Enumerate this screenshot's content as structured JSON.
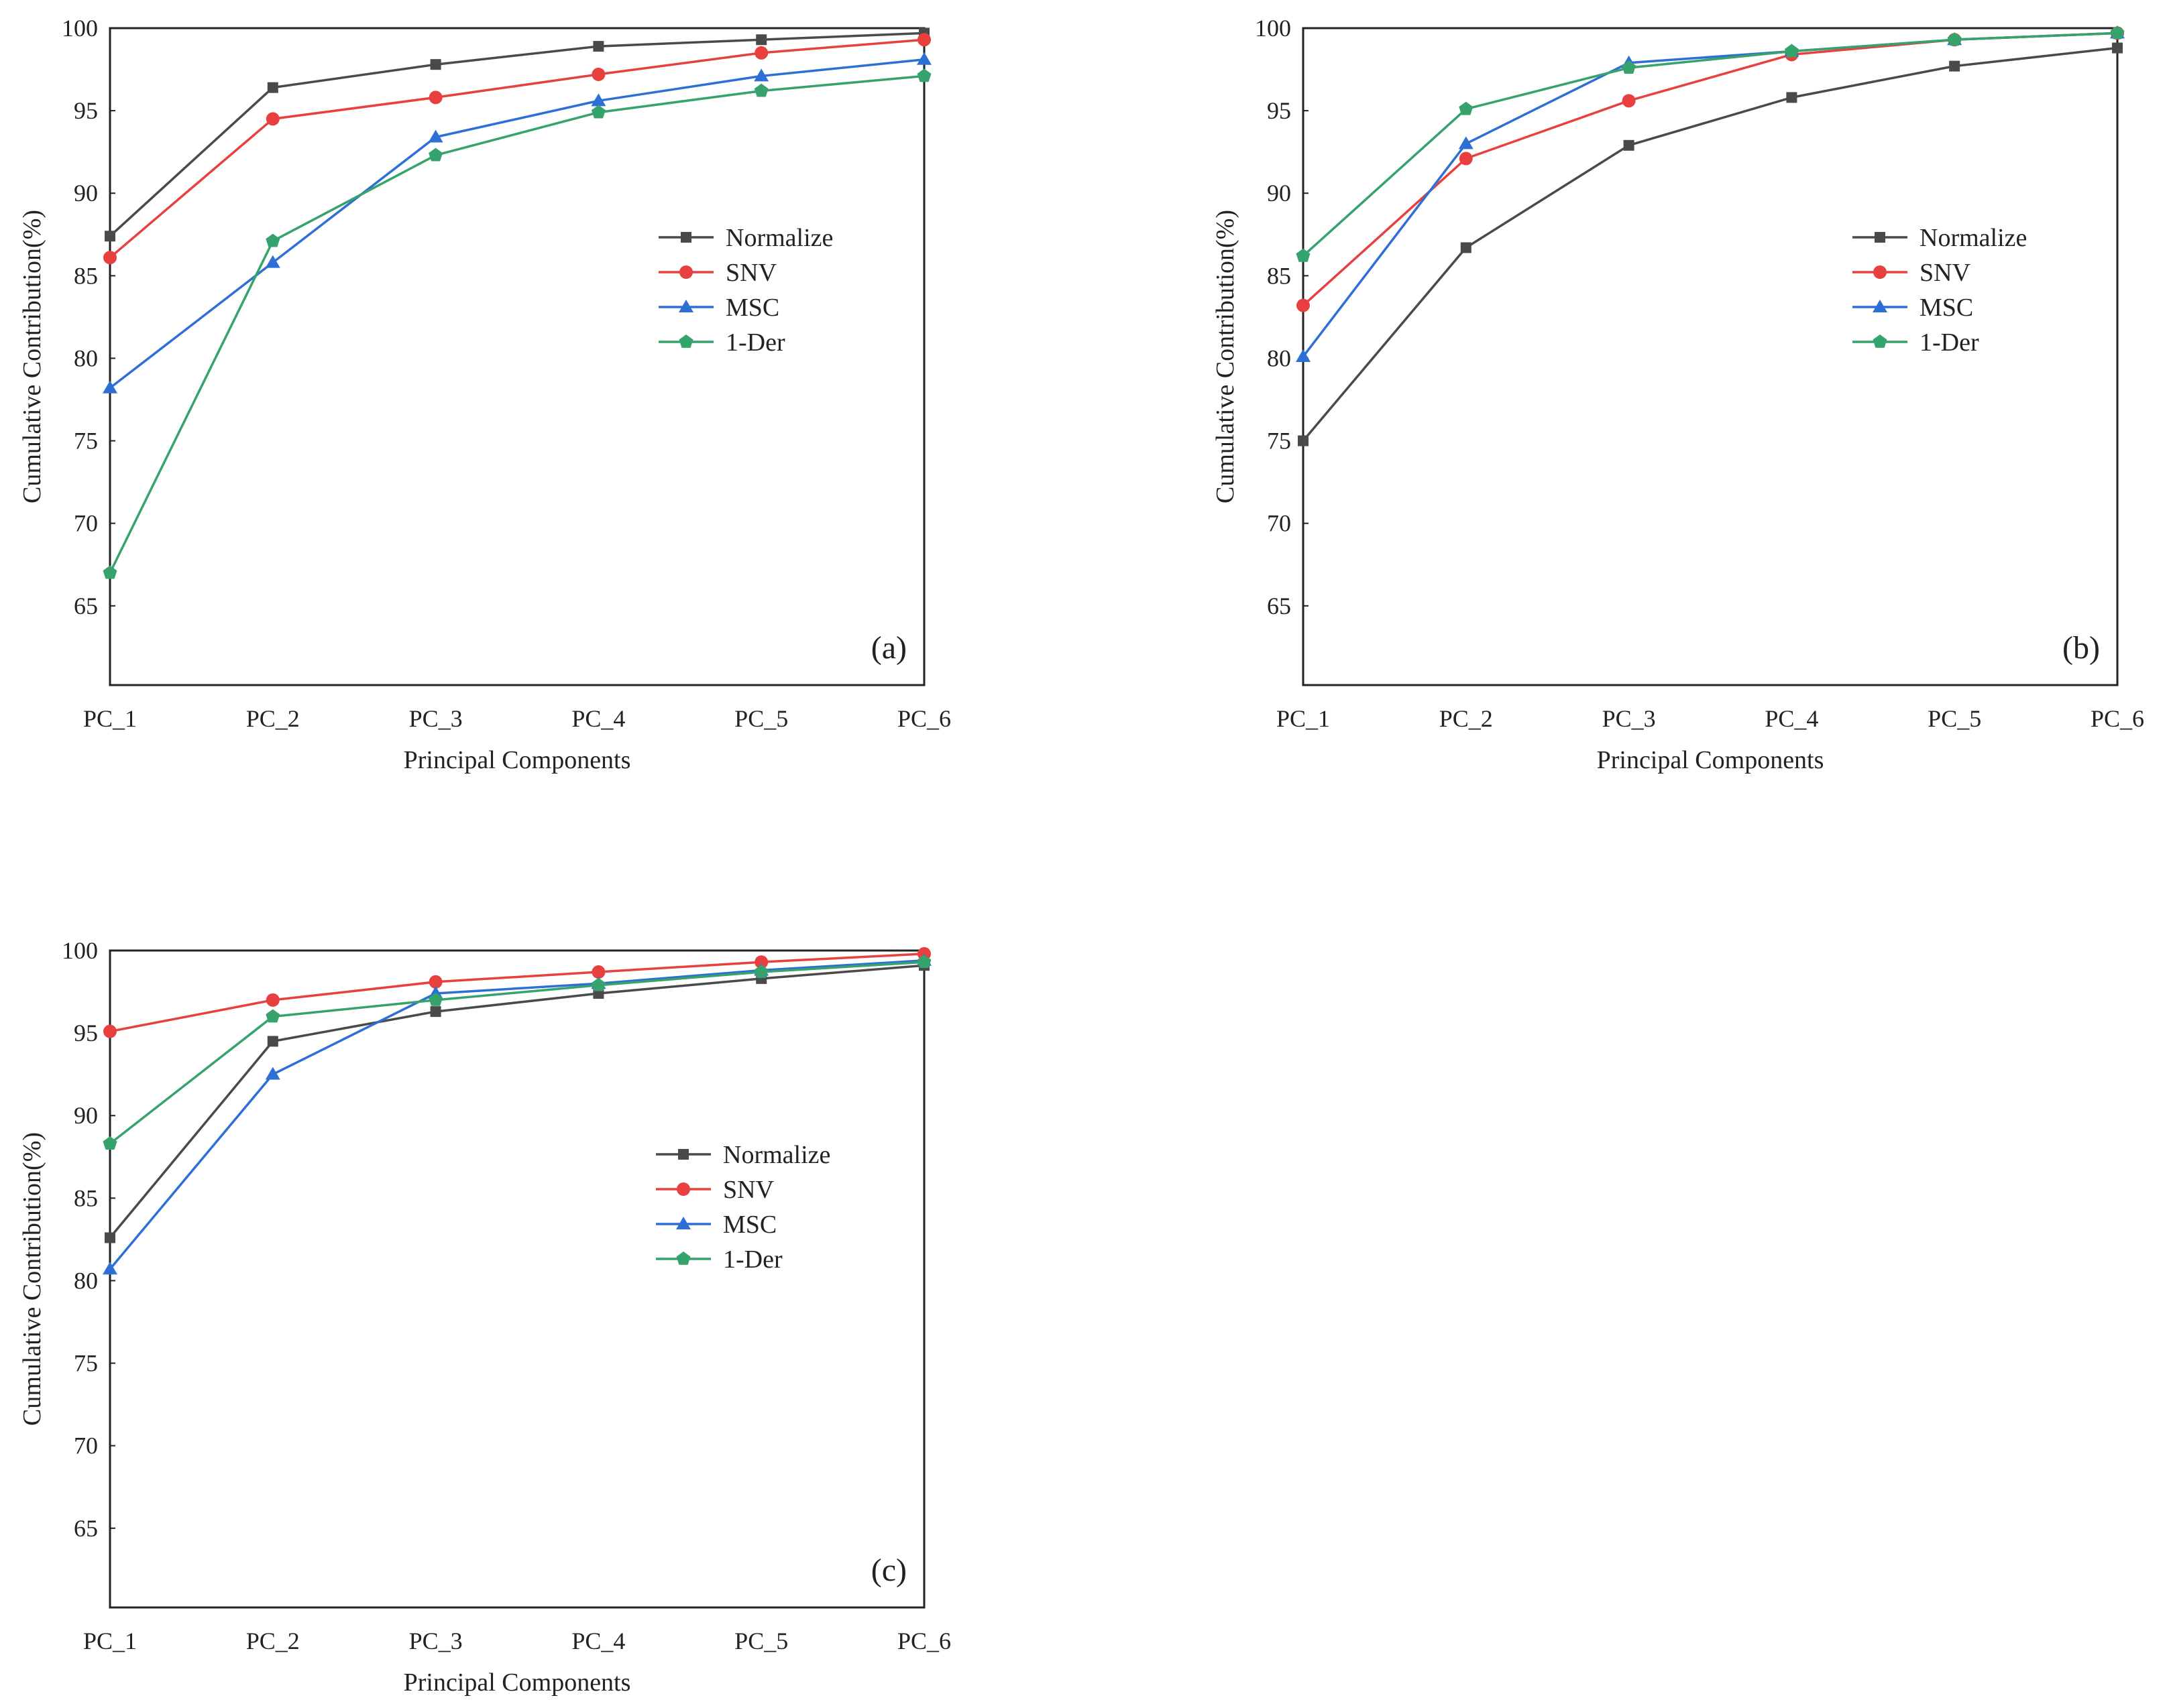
{
  "chart_data": [
    {
      "id": "a",
      "type": "line",
      "panel_label": "(a)",
      "xlabel": "Principal Components",
      "ylabel": "Cumulative Contribution(%)",
      "categories": [
        "PC_1",
        "PC_2",
        "PC_3",
        "PC_4",
        "PC_5",
        "PC_6"
      ],
      "ylim": [
        60.2,
        100
      ],
      "yticks": [
        65,
        70,
        75,
        80,
        85,
        90,
        95,
        100
      ],
      "legend_position": "center-right",
      "series": [
        {
          "name": "Normalize",
          "marker": "square",
          "color": "#4a4a4a",
          "values": [
            87.4,
            96.4,
            97.8,
            98.9,
            99.3,
            99.7
          ]
        },
        {
          "name": "SNV",
          "marker": "circle",
          "color": "#e8403f",
          "values": [
            86.1,
            94.5,
            95.8,
            97.2,
            98.5,
            99.3
          ]
        },
        {
          "name": "MSC",
          "marker": "triangle",
          "color": "#2e6fd6",
          "values": [
            78.2,
            85.8,
            93.4,
            95.6,
            97.1,
            98.1
          ]
        },
        {
          "name": "1-Der",
          "marker": "pentagon",
          "color": "#35a36b",
          "values": [
            67.0,
            87.1,
            92.3,
            94.9,
            96.2,
            97.1
          ]
        }
      ]
    },
    {
      "id": "b",
      "type": "line",
      "panel_label": "(b)",
      "xlabel": "Principal Components",
      "ylabel": "Cumulative Contribution(%)",
      "categories": [
        "PC_1",
        "PC_2",
        "PC_3",
        "PC_4",
        "PC_5",
        "PC_6"
      ],
      "ylim": [
        60.2,
        100
      ],
      "yticks": [
        65,
        70,
        75,
        80,
        85,
        90,
        95,
        100
      ],
      "legend_position": "center-right",
      "series": [
        {
          "name": "Normalize",
          "marker": "square",
          "color": "#4a4a4a",
          "values": [
            75.0,
            86.7,
            92.9,
            95.8,
            97.7,
            98.8
          ]
        },
        {
          "name": "SNV",
          "marker": "circle",
          "color": "#e8403f",
          "values": [
            83.2,
            92.1,
            95.6,
            98.4,
            99.3,
            99.7
          ]
        },
        {
          "name": "MSC",
          "marker": "triangle",
          "color": "#2e6fd6",
          "values": [
            80.1,
            93.0,
            97.9,
            98.6,
            99.3,
            99.7
          ]
        },
        {
          "name": "1-Der",
          "marker": "pentagon",
          "color": "#35a36b",
          "values": [
            86.2,
            95.1,
            97.6,
            98.6,
            99.3,
            99.7
          ]
        }
      ]
    },
    {
      "id": "c",
      "type": "line",
      "panel_label": "(c)",
      "xlabel": "Principal Components",
      "ylabel": "Cumulative Contribution(%)",
      "categories": [
        "PC_1",
        "PC_2",
        "PC_3",
        "PC_4",
        "PC_5",
        "PC_6"
      ],
      "ylim": [
        60.2,
        100
      ],
      "yticks": [
        65,
        70,
        75,
        80,
        85,
        90,
        95,
        100
      ],
      "legend_position": "center-right",
      "series": [
        {
          "name": "Normalize",
          "marker": "square",
          "color": "#4a4a4a",
          "values": [
            82.6,
            94.5,
            96.3,
            97.4,
            98.3,
            99.1
          ]
        },
        {
          "name": "SNV",
          "marker": "circle",
          "color": "#e8403f",
          "values": [
            95.1,
            97.0,
            98.1,
            98.7,
            99.3,
            99.8
          ]
        },
        {
          "name": "MSC",
          "marker": "triangle",
          "color": "#2e6fd6",
          "values": [
            80.7,
            92.5,
            97.4,
            98.0,
            98.8,
            99.4
          ]
        },
        {
          "name": "1-Der",
          "marker": "pentagon",
          "color": "#35a36b",
          "values": [
            88.3,
            96.0,
            97.0,
            97.9,
            98.7,
            99.3
          ]
        }
      ]
    }
  ]
}
